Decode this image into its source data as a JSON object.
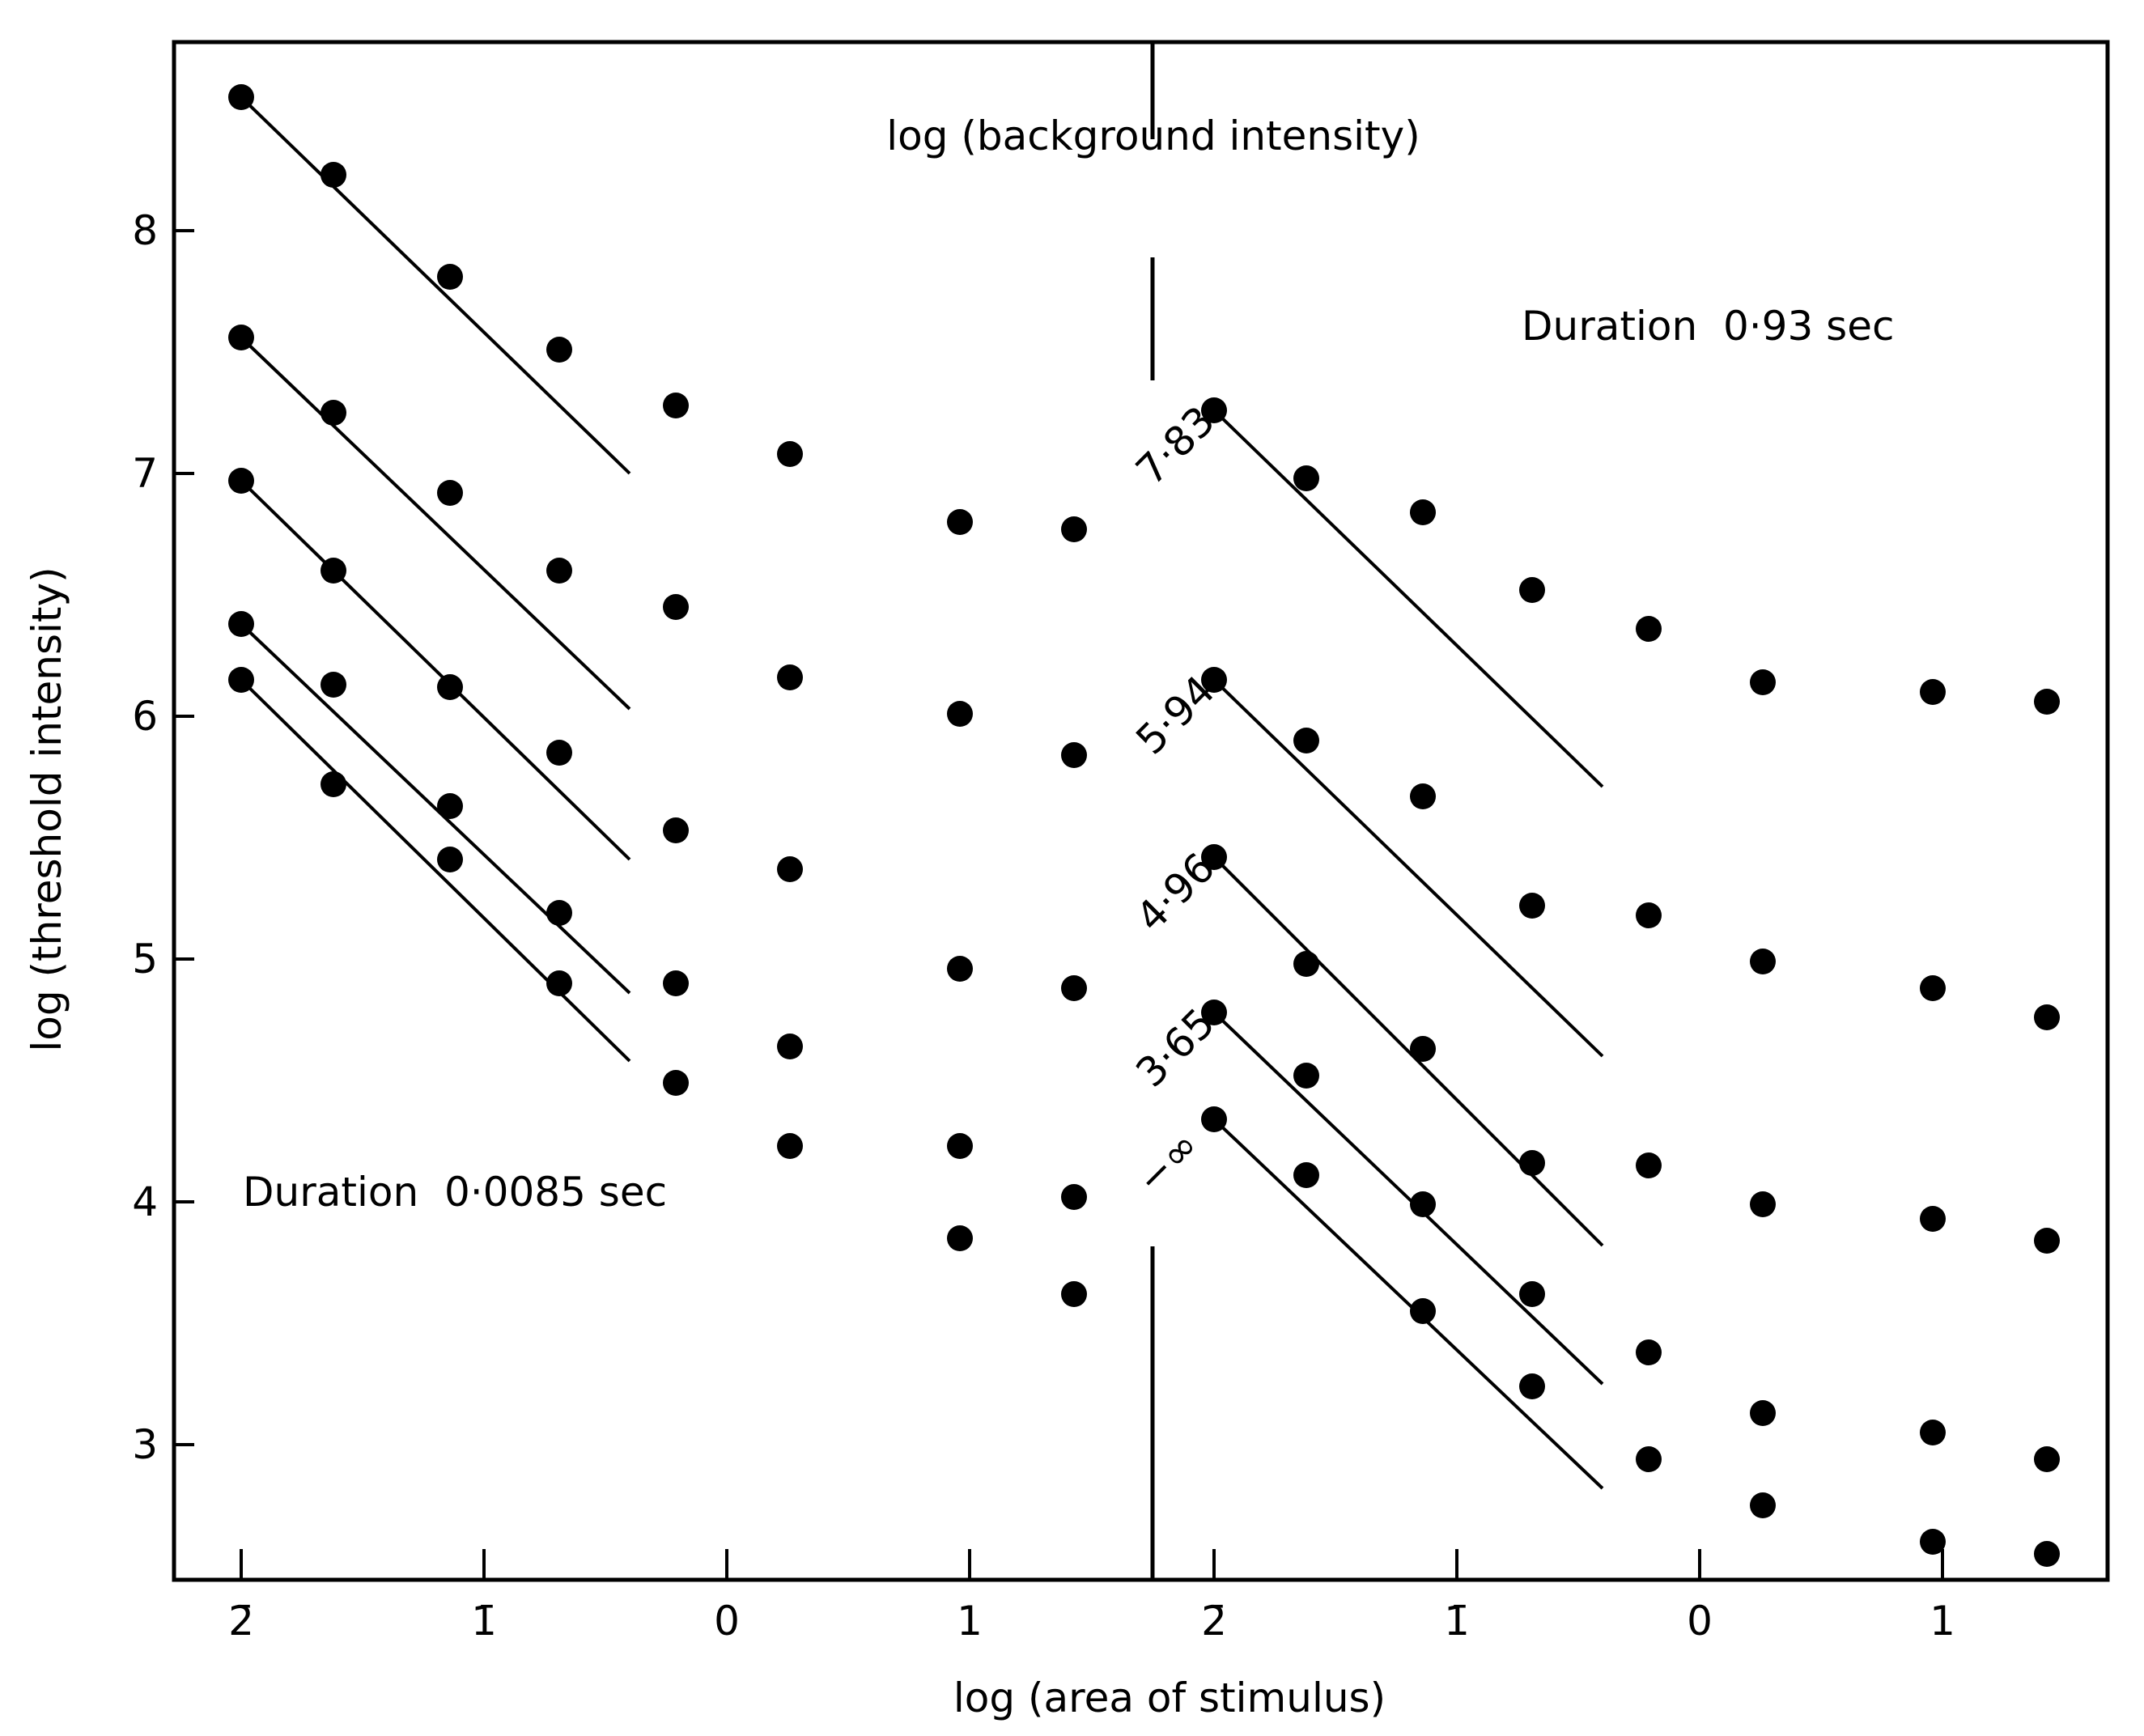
{
  "chart_data": {
    "type": "scatter",
    "ylabel": "log (threshold intensity)",
    "xlabel": "log (area of stimulus)",
    "top_label": "log (background intensity)",
    "y_ticks": [
      "8",
      "7",
      "6",
      "5",
      "4",
      "3"
    ],
    "ylim": [
      2.5,
      8.85
    ],
    "panels": [
      {
        "annotation": "Duration  0·0085 sec",
        "xlim": [
          -2.25,
          1.75
        ],
        "x_ticks": [
          {
            "label": "2̄",
            "value": -2
          },
          {
            "label": "1̄",
            "value": -1
          },
          {
            "label": "0",
            "value": 0
          },
          {
            "label": "1",
            "value": 1
          }
        ],
        "series": [
          {
            "points": [
              [
                -2,
                8.55
              ],
              [
                -1.62,
                8.23
              ],
              [
                -1.14,
                7.81
              ],
              [
                -0.69,
                7.51
              ],
              [
                -0.21,
                7.28
              ],
              [
                0.26,
                7.08
              ],
              [
                0.96,
                6.8
              ],
              [
                1.43,
                6.77
              ]
            ],
            "line": [
              [
                -2,
                8.55
              ],
              [
                -0.4,
                7.0
              ]
            ]
          },
          {
            "points": [
              [
                -2,
                7.56
              ],
              [
                -1.62,
                7.25
              ],
              [
                -1.14,
                6.92
              ],
              [
                -0.69,
                6.6
              ],
              [
                -0.21,
                6.45
              ],
              [
                0.26,
                6.16
              ],
              [
                0.96,
                6.01
              ],
              [
                1.43,
                5.84
              ]
            ],
            "line": [
              [
                -2,
                7.56
              ],
              [
                -0.4,
                6.03
              ]
            ]
          },
          {
            "points": [
              [
                -2,
                6.97
              ],
              [
                -1.62,
                6.6
              ],
              [
                -1.14,
                6.12
              ],
              [
                -0.69,
                5.85
              ],
              [
                -0.21,
                5.53
              ],
              [
                0.26,
                5.37
              ],
              [
                0.96,
                4.96
              ],
              [
                1.43,
                4.88
              ]
            ],
            "line": [
              [
                -2,
                6.97
              ],
              [
                -0.4,
                5.41
              ]
            ]
          },
          {
            "points": [
              [
                -2,
                6.38
              ],
              [
                -1.62,
                6.13
              ],
              [
                -1.14,
                5.63
              ],
              [
                -0.69,
                5.19
              ],
              [
                -0.21,
                4.9
              ],
              [
                0.26,
                4.64
              ],
              [
                0.96,
                4.23
              ],
              [
                1.43,
                4.02
              ]
            ],
            "line": [
              [
                -2,
                6.38
              ],
              [
                -0.4,
                4.86
              ]
            ]
          },
          {
            "points": [
              [
                -2,
                6.15
              ],
              [
                -1.62,
                5.72
              ],
              [
                -1.14,
                5.41
              ],
              [
                -0.69,
                4.9
              ],
              [
                -0.21,
                4.49
              ],
              [
                0.26,
                4.23
              ],
              [
                0.96,
                3.85
              ],
              [
                1.43,
                3.62
              ]
            ],
            "line": [
              [
                -2,
                6.15
              ],
              [
                -0.4,
                4.58
              ]
            ]
          }
        ]
      },
      {
        "annotation": "Duration  0·93 sec",
        "xlim": [
          -2.25,
          1.75
        ],
        "x_ticks": [
          {
            "label": "2̄",
            "value": -2
          },
          {
            "label": "1̄",
            "value": -1
          },
          {
            "label": "0",
            "value": 0
          },
          {
            "label": "1",
            "value": 1
          }
        ],
        "series": [
          {
            "name": "7·83",
            "points": [
              [
                -2,
                7.26
              ],
              [
                -1.62,
                6.98
              ],
              [
                -1.14,
                6.84
              ],
              [
                -0.69,
                6.52
              ],
              [
                -0.21,
                6.36
              ],
              [
                0.26,
                6.14
              ],
              [
                0.96,
                6.1
              ],
              [
                1.43,
                6.06
              ]
            ],
            "line": [
              [
                -2,
                7.26
              ],
              [
                -0.4,
                5.71
              ]
            ]
          },
          {
            "name": "5·94",
            "points": [
              [
                -2,
                6.15
              ],
              [
                -1.62,
                5.9
              ],
              [
                -1.14,
                5.67
              ],
              [
                -0.69,
                5.22
              ],
              [
                -0.21,
                5.18
              ],
              [
                0.26,
                4.99
              ],
              [
                0.96,
                4.88
              ],
              [
                1.43,
                4.76
              ]
            ],
            "line": [
              [
                -2,
                6.15
              ],
              [
                -0.4,
                4.6
              ]
            ]
          },
          {
            "name": "4·96",
            "points": [
              [
                -2,
                5.42
              ],
              [
                -1.62,
                4.98
              ],
              [
                -1.14,
                4.63
              ],
              [
                -0.69,
                4.16
              ],
              [
                -0.21,
                4.15
              ],
              [
                0.26,
                3.99
              ],
              [
                0.96,
                3.93
              ],
              [
                1.43,
                3.84
              ]
            ],
            "line": [
              [
                -2,
                5.42
              ],
              [
                -0.4,
                3.82
              ]
            ]
          },
          {
            "name": "3·65",
            "points": [
              [
                -2,
                4.78
              ],
              [
                -1.62,
                4.52
              ],
              [
                -1.14,
                3.99
              ],
              [
                -0.69,
                3.62
              ],
              [
                -0.21,
                3.38
              ],
              [
                0.26,
                3.13
              ],
              [
                0.96,
                3.05
              ],
              [
                1.43,
                2.94
              ]
            ],
            "line": [
              [
                -2,
                4.78
              ],
              [
                -0.4,
                3.25
              ]
            ]
          },
          {
            "name": "−∞",
            "points": [
              [
                -2,
                4.34
              ],
              [
                -1.62,
                4.11
              ],
              [
                -1.14,
                3.55
              ],
              [
                -0.69,
                3.24
              ],
              [
                -0.21,
                2.94
              ],
              [
                0.26,
                2.75
              ],
              [
                0.96,
                2.6
              ],
              [
                1.43,
                2.55
              ]
            ],
            "line": [
              [
                -2,
                4.34
              ],
              [
                -0.4,
                2.82
              ]
            ]
          }
        ]
      }
    ]
  }
}
